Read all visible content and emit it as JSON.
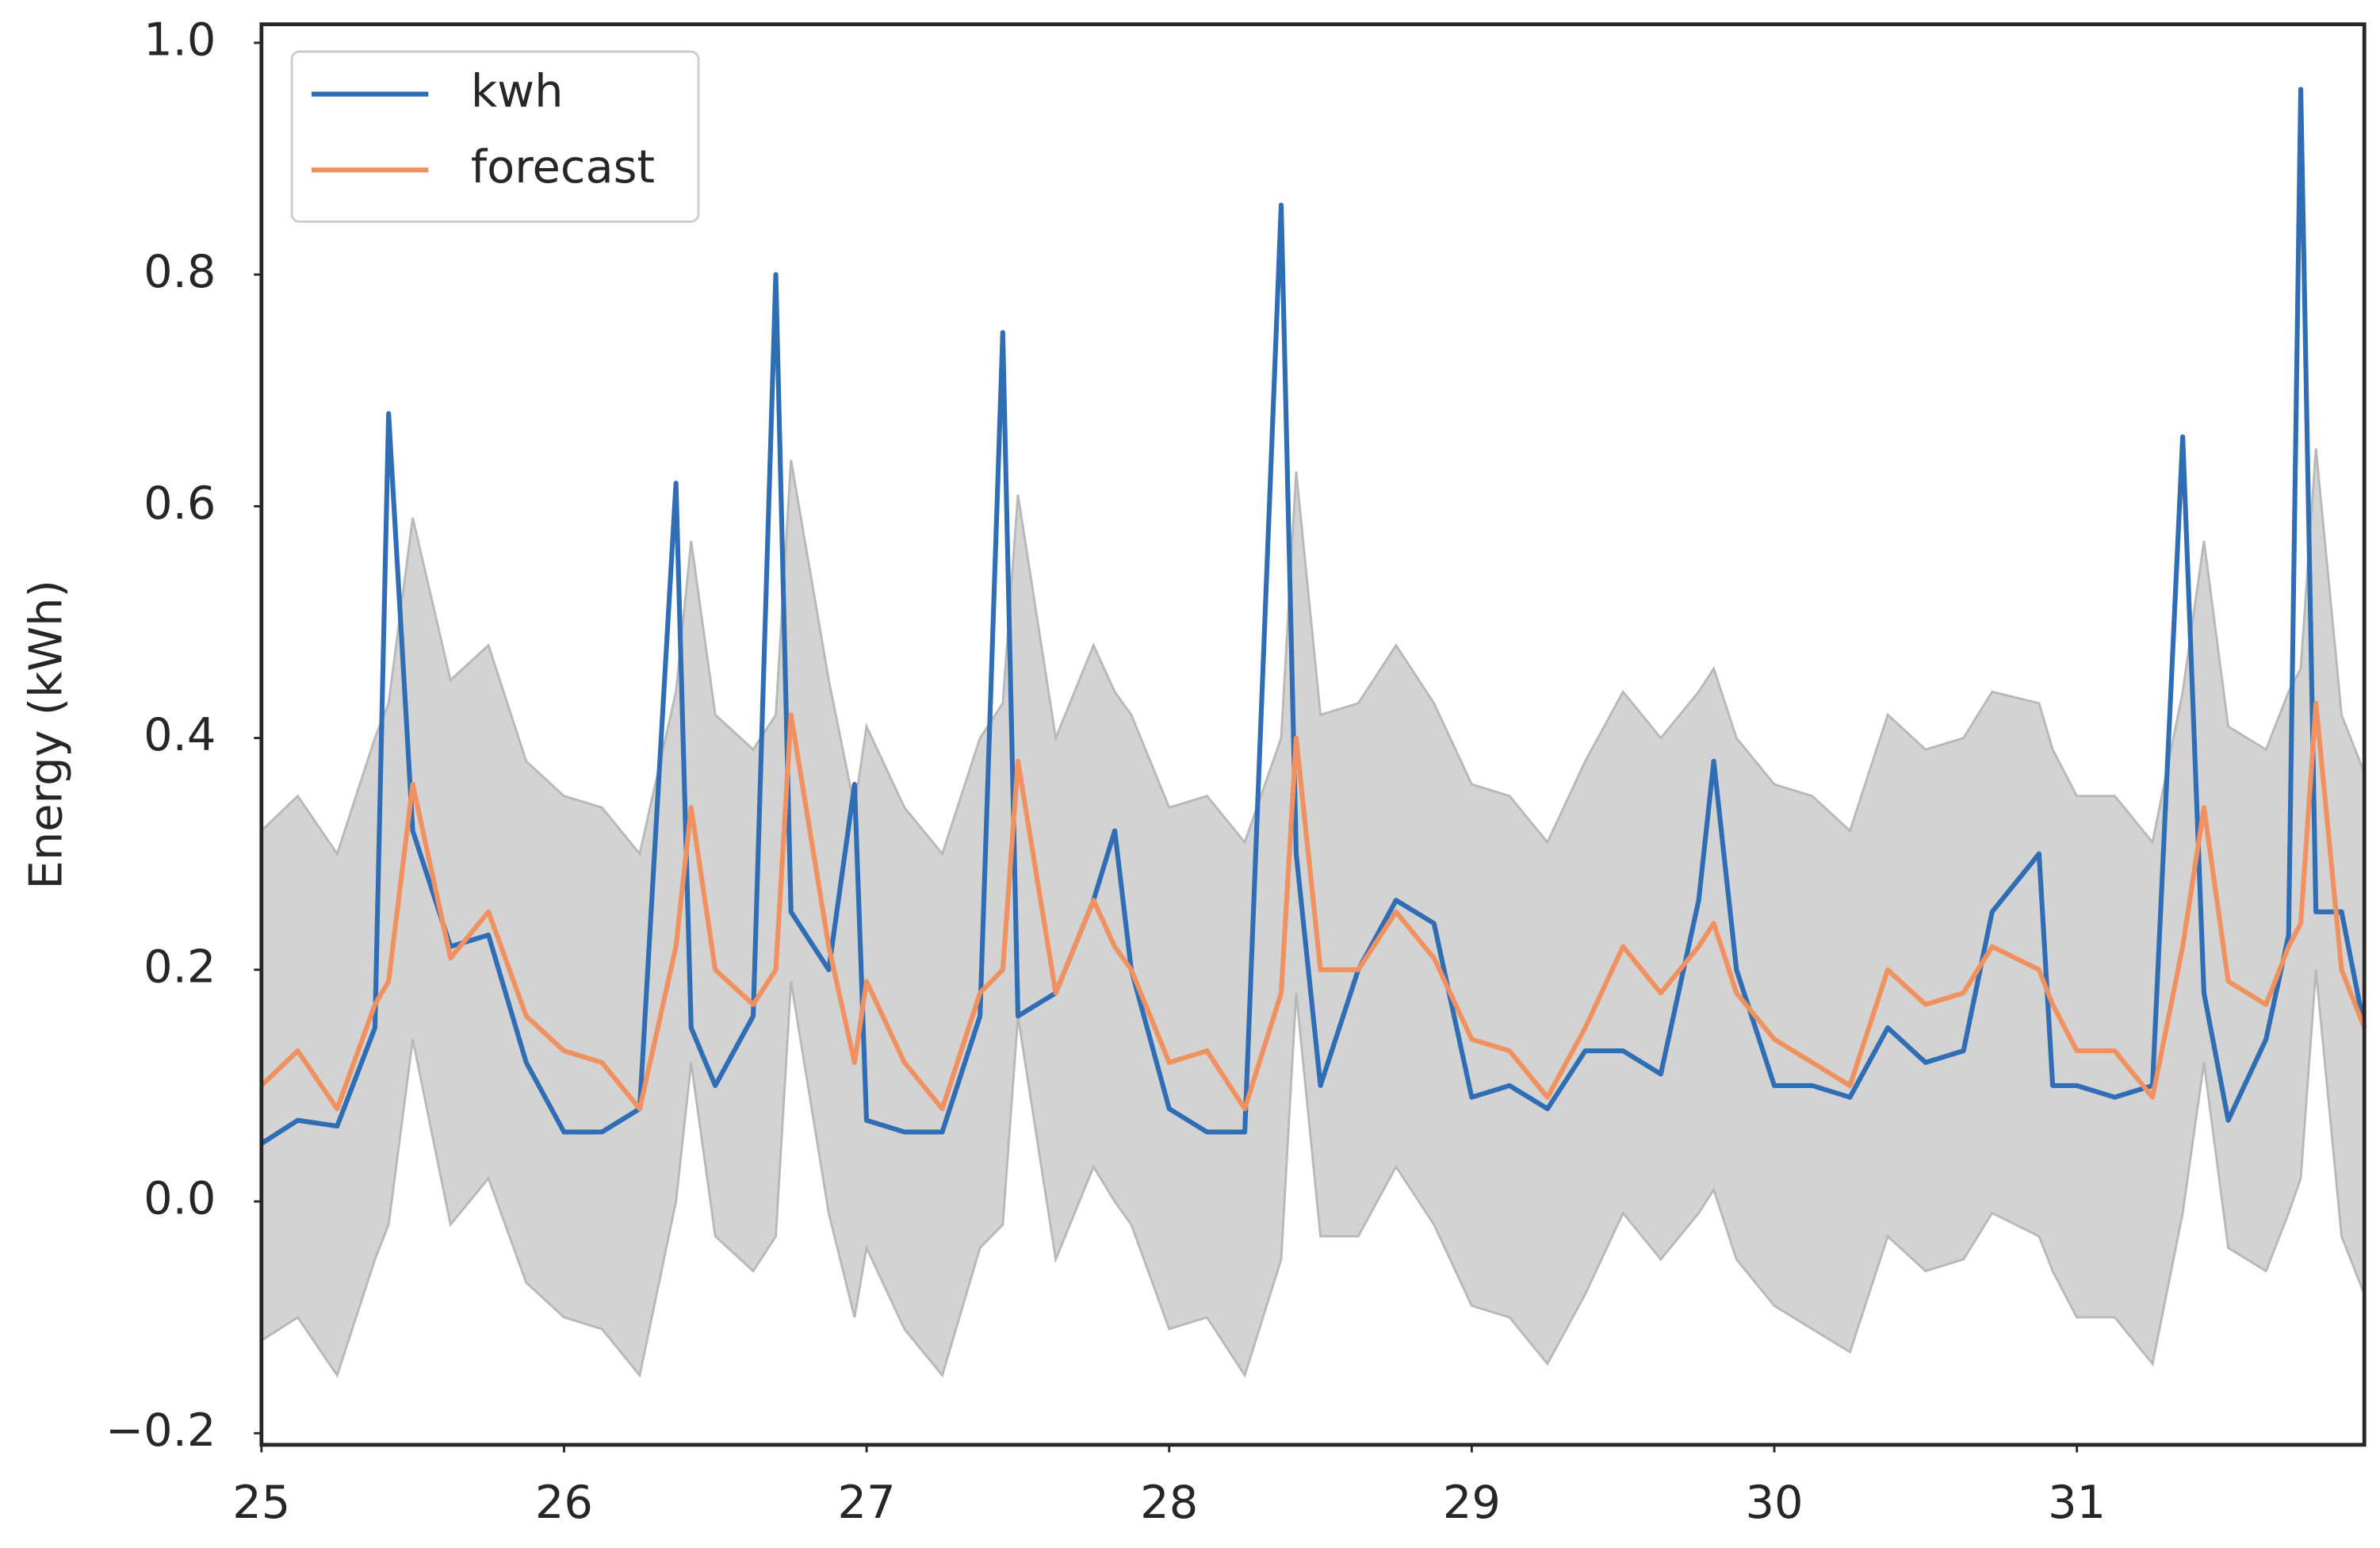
{
  "chart_data": {
    "type": "line",
    "y_label": "Energy (kWh)",
    "x": [
      25.0,
      25.12,
      25.25,
      25.375,
      25.42,
      25.5,
      25.625,
      25.75,
      25.875,
      26.0,
      26.125,
      26.25,
      26.37,
      26.42,
      26.5,
      26.625,
      26.7,
      26.75,
      26.875,
      26.96,
      27.0,
      27.125,
      27.25,
      27.375,
      27.45,
      27.5,
      27.625,
      27.75,
      27.82,
      27.875,
      28.0,
      28.125,
      28.25,
      28.37,
      28.42,
      28.5,
      28.625,
      28.75,
      28.875,
      29.0,
      29.125,
      29.25,
      29.375,
      29.5,
      29.625,
      29.75,
      29.8,
      29.875,
      30.0,
      30.125,
      30.25,
      30.375,
      30.5,
      30.625,
      30.72,
      30.875,
      30.92,
      31.0,
      31.125,
      31.25,
      31.35,
      31.42,
      31.5,
      31.625,
      31.7,
      31.74,
      31.79,
      31.875,
      31.95
    ],
    "series": [
      {
        "name": "kwh",
        "color": "#2f6db5",
        "values": [
          0.05,
          0.07,
          0.065,
          0.15,
          0.68,
          0.32,
          0.22,
          0.23,
          0.12,
          0.06,
          0.06,
          0.08,
          0.62,
          0.15,
          0.1,
          0.16,
          0.8,
          0.25,
          0.2,
          0.36,
          0.07,
          0.06,
          0.06,
          0.16,
          0.75,
          0.16,
          0.18,
          0.26,
          0.32,
          0.2,
          0.08,
          0.06,
          0.06,
          0.86,
          0.3,
          0.1,
          0.2,
          0.26,
          0.24,
          0.09,
          0.1,
          0.08,
          0.13,
          0.13,
          0.11,
          0.26,
          0.38,
          0.2,
          0.1,
          0.1,
          0.09,
          0.15,
          0.12,
          0.13,
          0.25,
          0.3,
          0.1,
          0.1,
          0.09,
          0.1,
          0.66,
          0.18,
          0.07,
          0.14,
          0.23,
          0.96,
          0.25,
          0.25,
          0.15
        ]
      },
      {
        "name": "forecast",
        "color": "#f0915f",
        "values": [
          0.1,
          0.13,
          0.08,
          0.17,
          0.19,
          0.36,
          0.21,
          0.25,
          0.16,
          0.13,
          0.12,
          0.08,
          0.22,
          0.34,
          0.2,
          0.17,
          0.2,
          0.42,
          0.22,
          0.12,
          0.19,
          0.12,
          0.08,
          0.18,
          0.2,
          0.38,
          0.18,
          0.26,
          0.22,
          0.2,
          0.12,
          0.13,
          0.08,
          0.18,
          0.4,
          0.2,
          0.2,
          0.25,
          0.21,
          0.14,
          0.13,
          0.09,
          0.15,
          0.22,
          0.18,
          0.22,
          0.24,
          0.18,
          0.14,
          0.12,
          0.1,
          0.2,
          0.17,
          0.18,
          0.22,
          0.2,
          0.17,
          0.13,
          0.13,
          0.09,
          0.22,
          0.34,
          0.19,
          0.17,
          0.22,
          0.24,
          0.43,
          0.2,
          0.15
        ]
      }
    ],
    "band": {
      "color": "#d3d3d3",
      "edge": "#b8b8b8",
      "lower": [
        -0.12,
        -0.1,
        -0.15,
        -0.05,
        -0.02,
        0.14,
        -0.02,
        0.02,
        -0.07,
        -0.1,
        -0.11,
        -0.15,
        0.0,
        0.12,
        -0.03,
        -0.06,
        -0.03,
        0.19,
        -0.01,
        -0.1,
        -0.04,
        -0.11,
        -0.15,
        -0.04,
        -0.02,
        0.16,
        -0.05,
        0.03,
        0.0,
        -0.02,
        -0.11,
        -0.1,
        -0.15,
        -0.05,
        0.18,
        -0.03,
        -0.03,
        0.03,
        -0.02,
        -0.09,
        -0.1,
        -0.14,
        -0.08,
        -0.01,
        -0.05,
        -0.01,
        0.01,
        -0.05,
        -0.09,
        -0.11,
        -0.13,
        -0.03,
        -0.06,
        -0.05,
        -0.01,
        -0.03,
        -0.06,
        -0.1,
        -0.1,
        -0.14,
        -0.01,
        0.12,
        -0.04,
        -0.06,
        -0.01,
        0.02,
        0.2,
        -0.03,
        -0.08
      ],
      "upper": [
        0.32,
        0.35,
        0.3,
        0.4,
        0.43,
        0.59,
        0.45,
        0.48,
        0.38,
        0.35,
        0.34,
        0.3,
        0.44,
        0.57,
        0.42,
        0.39,
        0.42,
        0.64,
        0.45,
        0.34,
        0.41,
        0.34,
        0.3,
        0.4,
        0.43,
        0.61,
        0.4,
        0.48,
        0.44,
        0.42,
        0.34,
        0.35,
        0.31,
        0.4,
        0.63,
        0.42,
        0.43,
        0.48,
        0.43,
        0.36,
        0.35,
        0.31,
        0.38,
        0.44,
        0.4,
        0.44,
        0.46,
        0.4,
        0.36,
        0.35,
        0.32,
        0.42,
        0.39,
        0.4,
        0.44,
        0.43,
        0.39,
        0.35,
        0.35,
        0.31,
        0.44,
        0.57,
        0.41,
        0.39,
        0.44,
        0.46,
        0.65,
        0.42,
        0.37
      ]
    },
    "xlim": [
      25,
      31.95
    ],
    "xticks": [
      25,
      26,
      27,
      28,
      29,
      30,
      31
    ],
    "ylim": [
      -0.21,
      1.016
    ],
    "yticks": [
      {
        "value": -0.2,
        "label": "−0.2"
      },
      {
        "value": 0,
        "label": "0.0"
      },
      0.2,
      0.4,
      0.6,
      0.8,
      {
        "value": 1.0,
        "label": "1.0"
      }
    ],
    "legend": "upper left",
    "grid": false
  }
}
